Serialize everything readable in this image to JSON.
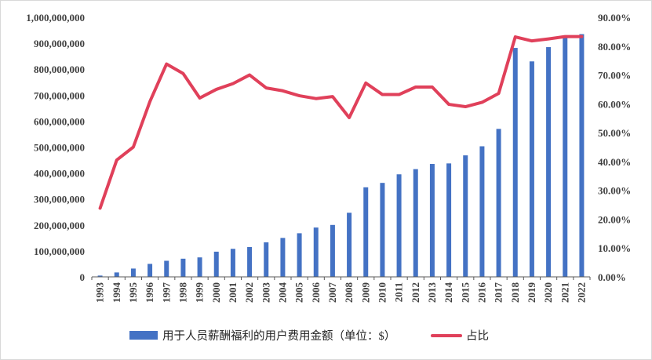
{
  "chart_data": {
    "type": "bar+line",
    "title": "",
    "categories": [
      "1993",
      "1994",
      "1995",
      "1996",
      "1997",
      "1998",
      "1999",
      "2000",
      "2001",
      "2002",
      "2003",
      "2004",
      "2005",
      "2006",
      "2007",
      "2008",
      "2009",
      "2010",
      "2011",
      "2012",
      "2013",
      "2014",
      "2015",
      "2016",
      "2017",
      "2018",
      "2019",
      "2020",
      "2021",
      "2022"
    ],
    "series": [
      {
        "name": "用于人员薪酬福利的用户费用金额（单位：$）",
        "type": "bar",
        "axis": "left",
        "color": "#4472C4",
        "values": [
          5000000,
          17000000,
          32000000,
          50000000,
          62000000,
          70000000,
          75000000,
          97000000,
          108000000,
          115000000,
          133000000,
          150000000,
          168000000,
          190000000,
          200000000,
          247000000,
          345000000,
          362000000,
          395000000,
          415000000,
          435000000,
          437000000,
          468000000,
          503000000,
          570000000,
          882000000,
          830000000,
          885000000,
          925000000,
          935000000
        ]
      },
      {
        "name": "占比",
        "type": "line",
        "axis": "right",
        "color": "#E0405A",
        "values": [
          0.238,
          0.405,
          0.45,
          0.608,
          0.738,
          0.705,
          0.62,
          0.65,
          0.67,
          0.7,
          0.655,
          0.645,
          0.628,
          0.618,
          0.625,
          0.552,
          0.672,
          0.632,
          0.632,
          0.658,
          0.658,
          0.598,
          0.59,
          0.605,
          0.636,
          0.832,
          0.818,
          0.825,
          0.833,
          0.833
        ]
      }
    ],
    "y_left": {
      "min": 0,
      "max": 1000000000,
      "ticks": [
        0,
        100000000,
        200000000,
        300000000,
        400000000,
        500000000,
        600000000,
        700000000,
        800000000,
        900000000,
        1000000000
      ],
      "tick_labels": [
        "0",
        "100,000,000",
        "200,000,000",
        "300,000,000",
        "400,000,000",
        "500,000,000",
        "600,000,000",
        "700,000,000",
        "800,000,000",
        "900,000,000",
        "1,000,000,000"
      ]
    },
    "y_right": {
      "min": 0,
      "max": 0.9,
      "ticks": [
        0,
        0.1,
        0.2,
        0.3,
        0.4,
        0.5,
        0.6,
        0.7,
        0.8,
        0.9
      ],
      "tick_labels": [
        "0.00%",
        "10.00%",
        "20.00%",
        "30.00%",
        "40.00%",
        "50.00%",
        "60.00%",
        "70.00%",
        "80.00%",
        "90.00%"
      ]
    },
    "grid": false,
    "legend_position": "bottom",
    "xlabel": "",
    "ylabel": ""
  }
}
